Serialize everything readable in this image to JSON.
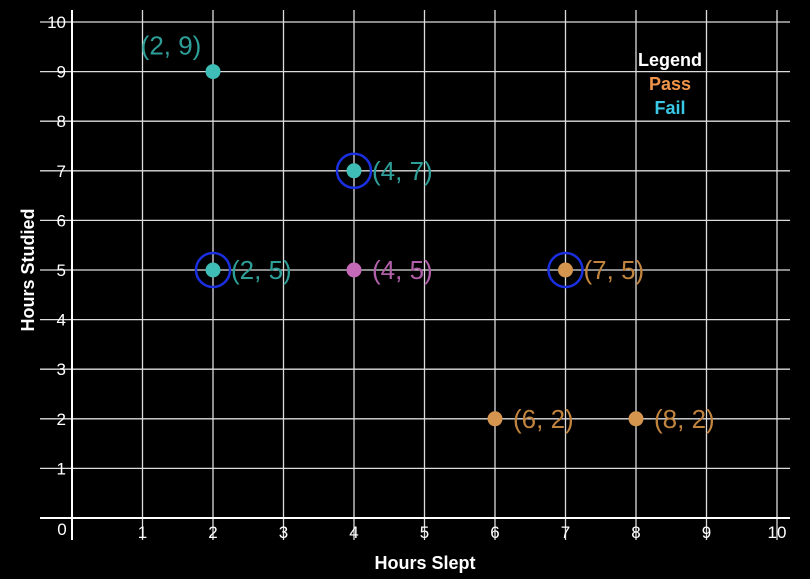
{
  "chart_data": {
    "type": "scatter",
    "title": "",
    "xlabel": "Hours Slept",
    "ylabel": "Hours Studied",
    "xlim": [
      0,
      10
    ],
    "ylim": [
      0,
      10
    ],
    "x_ticks": [
      "0",
      "1",
      "2",
      "3",
      "4",
      "5",
      "6",
      "7",
      "8",
      "9",
      "10"
    ],
    "y_ticks": [
      "1",
      "2",
      "3",
      "4",
      "5",
      "6",
      "7",
      "8",
      "9",
      "10"
    ],
    "grid": true,
    "legend": {
      "title": "Legend",
      "position": "top-right",
      "entries": [
        {
          "label": "Pass",
          "color": "#f0944a"
        },
        {
          "label": "Fail",
          "color": "#39c8e6"
        }
      ]
    },
    "colors": {
      "teal": "#3dbdb5",
      "teal_label": "#2e9e98",
      "purple": "#c468b8",
      "purple_label": "#b05fa8",
      "orange": "#d6954e",
      "orange_label": "#c0843f",
      "highlight": "#1a2fe0"
    },
    "points": [
      {
        "x": 2,
        "y": 9,
        "label": "(2, 9)",
        "color": "teal",
        "highlighted": false,
        "label_side": "top-left"
      },
      {
        "x": 4,
        "y": 7,
        "label": "(4, 7)",
        "color": "teal",
        "highlighted": true,
        "label_side": "right"
      },
      {
        "x": 2,
        "y": 5,
        "label": "(2, 5)",
        "color": "teal",
        "highlighted": true,
        "label_side": "right"
      },
      {
        "x": 4,
        "y": 5,
        "label": "(4, 5)",
        "color": "purple",
        "highlighted": false,
        "label_side": "right"
      },
      {
        "x": 7,
        "y": 5,
        "label": "(7, 5)",
        "color": "orange",
        "highlighted": true,
        "label_side": "right"
      },
      {
        "x": 6,
        "y": 2,
        "label": "(6, 2)",
        "color": "orange",
        "highlighted": false,
        "label_side": "right"
      },
      {
        "x": 8,
        "y": 2,
        "label": "(8, 2)",
        "color": "orange",
        "highlighted": false,
        "label_side": "right"
      }
    ]
  }
}
